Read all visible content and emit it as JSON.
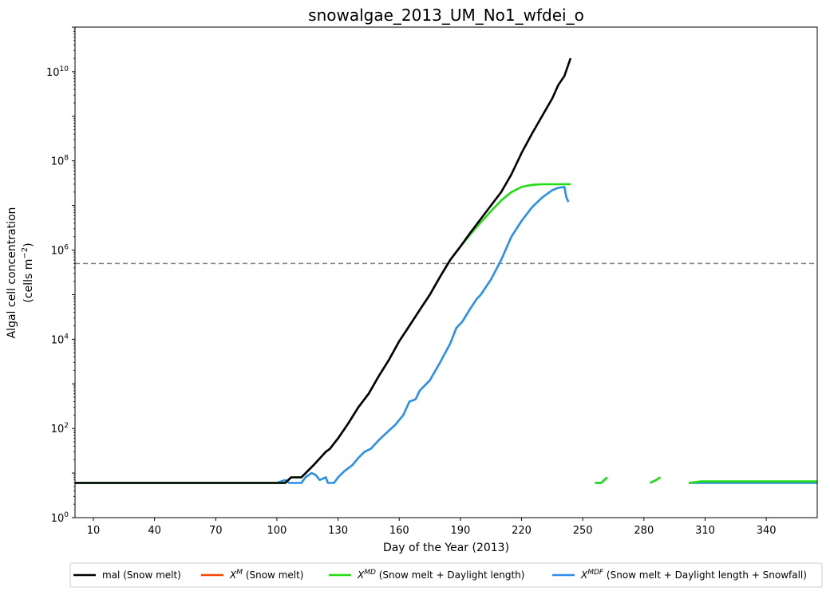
{
  "chart_data": {
    "type": "line",
    "title": "snowalgae_2013_UM_No1_wfdei_o",
    "xlabel": "Day of the Year (2013)",
    "ylabel_line1": "Algal cell concentration",
    "ylabel_line2_prefix": "(cells m",
    "ylabel_line2_sup": "−2",
    "ylabel_line2_suffix": ")",
    "x_scale": "linear",
    "y_scale": "log",
    "xlim": [
      1,
      365
    ],
    "ylim": [
      1,
      100000000000.0
    ],
    "x_ticks": [
      10,
      40,
      70,
      100,
      130,
      160,
      190,
      220,
      250,
      280,
      310,
      340
    ],
    "y_ticks": [
      {
        "value": 1,
        "base": "10",
        "exp": "0"
      },
      {
        "value": 100,
        "base": "10",
        "exp": "2"
      },
      {
        "value": 10000,
        "base": "10",
        "exp": "4"
      },
      {
        "value": 1000000,
        "base": "10",
        "exp": "6"
      },
      {
        "value": 100000000,
        "base": "10",
        "exp": "8"
      },
      {
        "value": 10000000000,
        "base": "10",
        "exp": "10"
      }
    ],
    "grid": false,
    "legend_position": "bottom",
    "threshold": {
      "y": 500000,
      "color": "#808080",
      "style": "dashed"
    },
    "series": [
      {
        "name": "mal (Snow melt)",
        "color": "#000000",
        "segments": [
          [
            [
              1,
              6
            ],
            [
              91,
              6
            ],
            [
              100,
              6
            ],
            [
              104,
              6
            ],
            [
              107,
              8
            ],
            [
              112,
              8
            ],
            [
              118,
              15
            ],
            [
              124,
              30
            ],
            [
              126,
              35
            ],
            [
              130,
              60
            ],
            [
              135,
              130
            ],
            [
              140,
              300
            ],
            [
              145,
              600
            ],
            [
              150,
              1500
            ],
            [
              155,
              3500
            ],
            [
              160,
              9000
            ],
            [
              165,
              20000
            ],
            [
              170,
              45000
            ],
            [
              175,
              100000
            ],
            [
              180,
              250000
            ],
            [
              185,
              600000
            ],
            [
              190,
              1200000
            ],
            [
              195,
              2500000
            ],
            [
              200,
              5000000
            ],
            [
              205,
              10000000
            ],
            [
              210,
              20000000
            ],
            [
              215,
              50000000
            ],
            [
              220,
              150000000
            ],
            [
              225,
              400000000
            ],
            [
              230,
              1000000000
            ],
            [
              235,
              2500000000
            ],
            [
              238,
              5000000000
            ],
            [
              241,
              8000000000
            ],
            [
              244,
              20000000000
            ]
          ]
        ]
      },
      {
        "name": "X^M (Snow melt)",
        "name_base": "X",
        "name_sup": "M",
        "name_suffix": " (Snow melt)",
        "color": "#FF4500",
        "segments": []
      },
      {
        "name": "X^MD (Snow melt + Daylight length)",
        "name_base": "X",
        "name_sup": "MD",
        "name_suffix": " (Snow melt + Daylight length)",
        "color": "#22DD11",
        "segments": [
          [
            [
              1,
              6
            ],
            [
              91,
              6
            ],
            [
              100,
              6
            ],
            [
              104,
              6
            ],
            [
              107,
              8
            ],
            [
              112,
              8
            ],
            [
              118,
              15
            ],
            [
              124,
              30
            ],
            [
              126,
              35
            ],
            [
              130,
              60
            ],
            [
              135,
              130
            ],
            [
              140,
              300
            ],
            [
              145,
              600
            ],
            [
              150,
              1500
            ],
            [
              155,
              3500
            ],
            [
              160,
              9000
            ],
            [
              165,
              20000
            ],
            [
              170,
              45000
            ],
            [
              175,
              100000
            ],
            [
              180,
              250000
            ],
            [
              185,
              600000
            ],
            [
              190,
              1200000
            ],
            [
              195,
              2300000
            ],
            [
              200,
              4200000
            ],
            [
              205,
              7500000
            ],
            [
              210,
              13000000
            ],
            [
              215,
              20000000
            ],
            [
              220,
              26000000
            ],
            [
              225,
              29000000
            ],
            [
              230,
              30000000
            ],
            [
              244,
              30000000
            ]
          ],
          [
            [
              256,
              6
            ],
            [
              259,
              6
            ],
            [
              262,
              8
            ]
          ],
          [
            [
              283,
              6
            ],
            [
              286,
              7
            ],
            [
              288,
              8
            ]
          ],
          [
            [
              302,
              6
            ],
            [
              308,
              6.5
            ],
            [
              365,
              6.5
            ]
          ]
        ]
      },
      {
        "name": "X^MDF (Snow melt + Daylight length + Snowfall)",
        "name_base": "X",
        "name_sup": "MDF",
        "name_suffix": " (Snow melt + Daylight length + Snowfall)",
        "color": "#2A8FE8",
        "segments": [
          [
            [
              1,
              6
            ],
            [
              100,
              6
            ],
            [
              104,
              7
            ],
            [
              106,
              6
            ],
            [
              112,
              6
            ],
            [
              114,
              8
            ],
            [
              117,
              10
            ],
            [
              119,
              9
            ],
            [
              121,
              7
            ],
            [
              124,
              8
            ],
            [
              125,
              6
            ],
            [
              128,
              6
            ],
            [
              130,
              8
            ],
            [
              133,
              11
            ],
            [
              137,
              15
            ],
            [
              140,
              22
            ],
            [
              143,
              30
            ],
            [
              146,
              35
            ],
            [
              150,
              55
            ],
            [
              155,
              90
            ],
            [
              158,
              120
            ],
            [
              162,
              200
            ],
            [
              165,
              400
            ],
            [
              168,
              450
            ],
            [
              170,
              700
            ],
            [
              175,
              1200
            ],
            [
              180,
              3000
            ],
            [
              185,
              8000
            ],
            [
              188,
              18000
            ],
            [
              191,
              25000
            ],
            [
              195,
              50000
            ],
            [
              198,
              80000
            ],
            [
              200,
              100000
            ],
            [
              205,
              220000
            ],
            [
              210,
              600000
            ],
            [
              215,
              2000000
            ],
            [
              220,
              4500000
            ],
            [
              225,
              9000000
            ],
            [
              230,
              15000000
            ],
            [
              235,
              22000000
            ],
            [
              238,
              25000000
            ],
            [
              241,
              26000000
            ],
            [
              242,
              15000000
            ],
            [
              243,
              12000000
            ]
          ],
          [
            [
              256,
              6
            ],
            [
              259,
              6
            ],
            [
              262,
              8
            ]
          ],
          [
            [
              283,
              6
            ],
            [
              286,
              7
            ],
            [
              288,
              8
            ]
          ],
          [
            [
              302,
              6
            ],
            [
              308,
              6
            ],
            [
              365,
              6
            ]
          ]
        ]
      }
    ]
  }
}
